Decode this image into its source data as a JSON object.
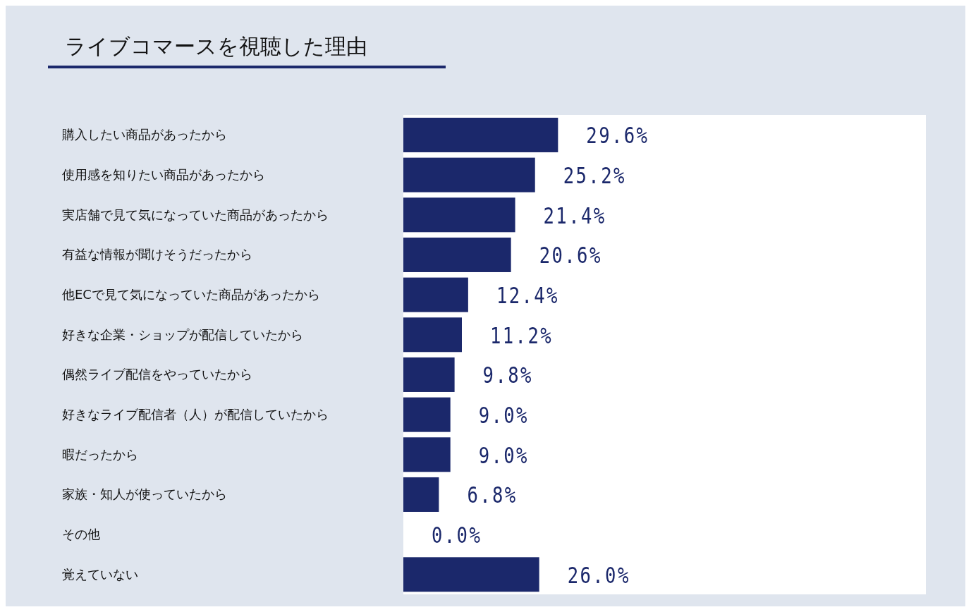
{
  "chart_data": {
    "type": "bar",
    "orientation": "horizontal",
    "title": "ライブコマースを視聴した理由",
    "categories": [
      "購入したい商品があったから",
      "使用感を知りたい商品があったから",
      "実店舗で見て気になっていた商品があったから",
      "有益な情報が聞けそうだったから",
      "他ECで見て気になっていた商品があったから",
      "好きな企業・ショップが配信していたから",
      "偶然ライブ配信をやっていたから",
      "好きなライブ配信者（人）が配信していたから",
      "暇だったから",
      "家族・知人が使っていたから",
      "その他",
      "覚えていない"
    ],
    "values": [
      29.6,
      25.2,
      21.4,
      20.6,
      12.4,
      11.2,
      9.8,
      9.0,
      9.0,
      6.8,
      0.0,
      26.0
    ],
    "value_labels": [
      "29.6%",
      "25.2%",
      "21.4%",
      "20.6%",
      "12.4%",
      "11.2%",
      "9.8%",
      "9.0%",
      "9.0%",
      "6.8%",
      "0.0%",
      "26.0%"
    ],
    "color": "#1b286b",
    "xlim": [
      0,
      100
    ],
    "tick_labels": "y",
    "grid": false,
    "legend": false
  }
}
